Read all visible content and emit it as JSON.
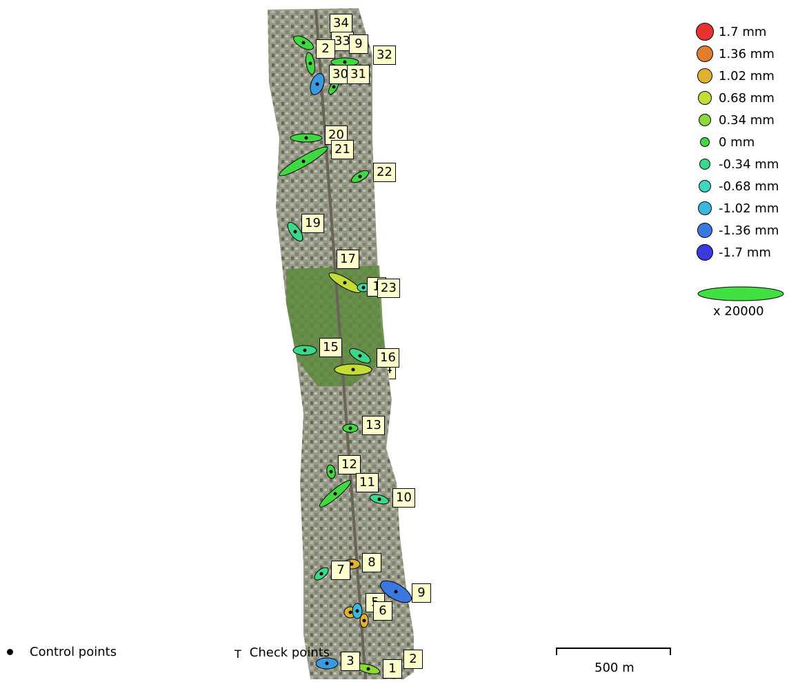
{
  "points": [
    {
      "id": "34",
      "label": "34",
      "type": "control"
    },
    {
      "id": "33",
      "label": "33",
      "type": "control"
    },
    {
      "id": "2x",
      "label": "2",
      "type": "control"
    },
    {
      "id": "9x",
      "label": "9",
      "type": "control"
    },
    {
      "id": "32",
      "label": "32",
      "type": "control"
    },
    {
      "id": "30",
      "label": "30",
      "type": "control"
    },
    {
      "id": "31",
      "label": "31",
      "type": "control"
    },
    {
      "id": "20",
      "label": "20",
      "type": "control"
    },
    {
      "id": "21",
      "label": "21",
      "type": "control"
    },
    {
      "id": "22",
      "label": "22",
      "type": "control"
    },
    {
      "id": "19",
      "label": "19",
      "type": "control"
    },
    {
      "id": "17",
      "label": "17",
      "type": "control"
    },
    {
      "id": "1x",
      "label": "1",
      "type": "control"
    },
    {
      "id": "23",
      "label": "23",
      "type": "control"
    },
    {
      "id": "15",
      "label": "15",
      "type": "control"
    },
    {
      "id": "16",
      "label": "16",
      "type": "control"
    },
    {
      "id": "14",
      "label": "14",
      "type": "control"
    },
    {
      "id": "13",
      "label": "13",
      "type": "control"
    },
    {
      "id": "12",
      "label": "12",
      "type": "control"
    },
    {
      "id": "11",
      "label": "11",
      "type": "control"
    },
    {
      "id": "10",
      "label": "10",
      "type": "control"
    },
    {
      "id": "8",
      "label": "8",
      "type": "control"
    },
    {
      "id": "7",
      "label": "7",
      "type": "control"
    },
    {
      "id": "9",
      "label": "9",
      "type": "control"
    },
    {
      "id": "5",
      "label": "5",
      "type": "control"
    },
    {
      "id": "6",
      "label": "6",
      "type": "control"
    },
    {
      "id": "3",
      "label": "3",
      "type": "control"
    },
    {
      "id": "1",
      "label": "1",
      "type": "control"
    },
    {
      "id": "2",
      "label": "2",
      "type": "control"
    }
  ],
  "legend": [
    {
      "label": "1.7 mm",
      "color": "#e83232"
    },
    {
      "label": "1.36 mm",
      "color": "#e37d2e"
    },
    {
      "label": "1.02 mm",
      "color": "#e0b030"
    },
    {
      "label": "0.68 mm",
      "color": "#c5dc34"
    },
    {
      "label": "0.34 mm",
      "color": "#8ad83a"
    },
    {
      "label": "0 mm",
      "color": "#40d840"
    },
    {
      "label": "-0.34 mm",
      "color": "#3cd88a"
    },
    {
      "label": "-0.68 mm",
      "color": "#3cd8c0"
    },
    {
      "label": "-1.02 mm",
      "color": "#3ab8e0"
    },
    {
      "label": "-1.36 mm",
      "color": "#3a78e0"
    },
    {
      "label": "-1.7 mm",
      "color": "#3a3ae0"
    }
  ],
  "scale": {
    "text": "x 20000",
    "ellipse_color": "#40e040"
  },
  "bottom_legend": {
    "control": "Control points",
    "check": "Check points",
    "check_symbol": "T"
  },
  "scalebar": {
    "text": "500 m"
  }
}
